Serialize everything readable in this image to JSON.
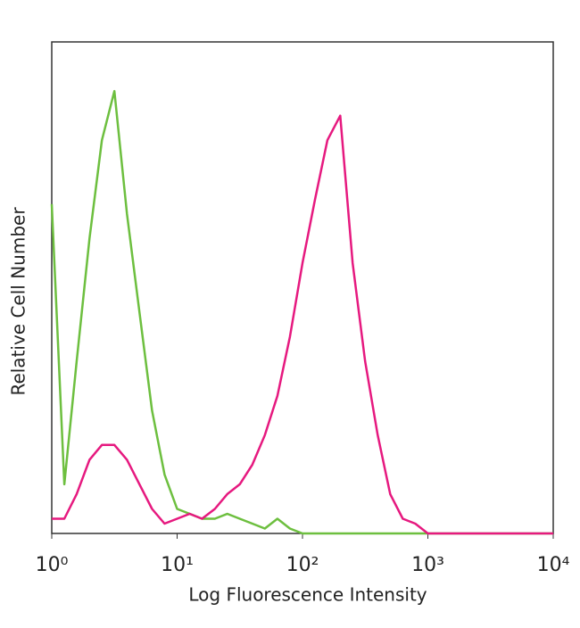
{
  "chart_data": {
    "type": "line",
    "xlabel": "Log Fluorescence Intensity",
    "ylabel": "Relative Cell Number",
    "xscale": "log",
    "xlim": [
      1,
      10000
    ],
    "ylim": [
      0,
      100
    ],
    "xticks": [
      {
        "value": 1,
        "label": "10⁰"
      },
      {
        "value": 10,
        "label": "10¹"
      },
      {
        "value": 100,
        "label": "10²"
      },
      {
        "value": 1000,
        "label": "10³"
      },
      {
        "value": 10000,
        "label": "10⁴"
      }
    ],
    "grid": false,
    "x": [
      1,
      1.26,
      1.58,
      2,
      2.51,
      3.16,
      3.98,
      5.01,
      6.31,
      7.94,
      10,
      12.6,
      15.8,
      20,
      25.1,
      31.6,
      39.8,
      50.1,
      63.1,
      79.4,
      100,
      126,
      158,
      200,
      251,
      316,
      398,
      501,
      631,
      794,
      1000,
      1260,
      1580,
      2000,
      2510,
      3160,
      3980,
      5010,
      6310,
      7940,
      10000
    ],
    "series": [
      {
        "color": "#6dbf3f",
        "values": [
          67,
          10,
          35,
          60,
          80,
          90,
          65,
          45,
          25,
          12,
          5,
          4,
          3,
          3,
          4,
          3,
          2,
          1,
          3,
          1,
          0,
          0,
          0,
          0,
          0,
          0,
          0,
          0,
          0,
          0,
          0,
          0,
          0,
          0,
          0,
          0,
          0,
          0,
          0,
          0,
          0
        ]
      },
      {
        "color": "#e6197f",
        "values": [
          3,
          3,
          8,
          15,
          18,
          18,
          15,
          10,
          5,
          2,
          3,
          4,
          3,
          5,
          8,
          10,
          14,
          20,
          28,
          40,
          55,
          68,
          80,
          85,
          55,
          35,
          20,
          8,
          3,
          2,
          0,
          0,
          0,
          0,
          0,
          0,
          0,
          0,
          0,
          0,
          0
        ]
      }
    ]
  }
}
